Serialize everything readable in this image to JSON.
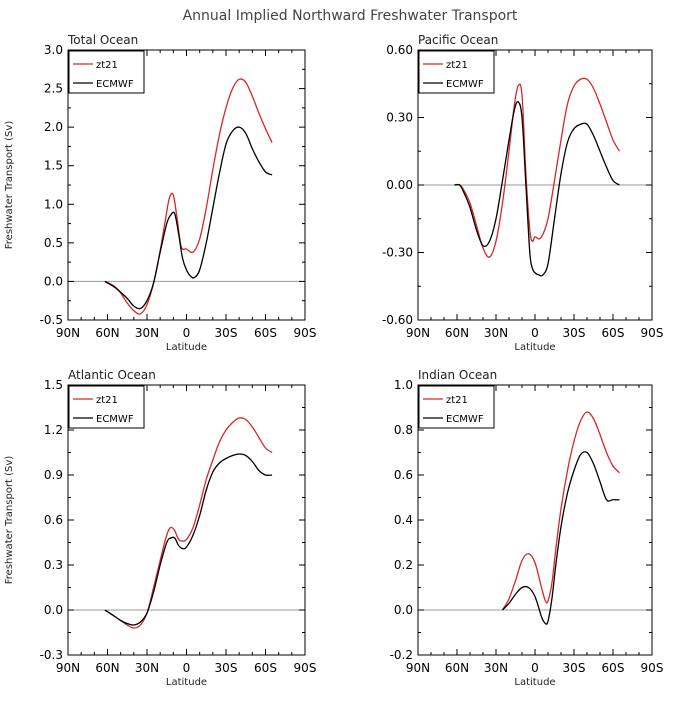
{
  "figure": {
    "title": "Annual Implied Northward Freshwater Transport",
    "title_color": "#444444"
  },
  "chart_data": [
    {
      "type": "line",
      "title": "Total Ocean",
      "xlabel": "Latitude",
      "ylabel": "Freshwater Transport (Sv)",
      "x_ticks": [
        -90,
        -60,
        -30,
        0,
        30,
        60,
        90
      ],
      "x_tick_labels": [
        "90N",
        "60N",
        "30N",
        "0",
        "30S",
        "60S",
        "90S"
      ],
      "xlim": [
        -90,
        90
      ],
      "ylim": [
        -0.5,
        3.0
      ],
      "y_ticks": [
        -0.5,
        0.0,
        0.5,
        1.0,
        1.5,
        2.0,
        2.5,
        3.0
      ],
      "y_tick_labels": [
        "-0.5",
        "0.0",
        "0.5",
        "1.0",
        "1.5",
        "2.0",
        "2.5",
        "3.0"
      ],
      "zero_line": true,
      "legend_position": "top-left",
      "series": [
        {
          "name": "zt21",
          "color": "#d62728",
          "x": [
            -62,
            -55,
            -50,
            -45,
            -40,
            -35,
            -30,
            -25,
            -20,
            -16,
            -13,
            -10,
            -7,
            -4,
            0,
            5,
            10,
            15,
            20,
            25,
            30,
            35,
            40,
            45,
            50,
            55,
            60,
            65
          ],
          "y": [
            0,
            -0.06,
            -0.15,
            -0.28,
            -0.38,
            -0.42,
            -0.3,
            -0.02,
            0.4,
            0.8,
            1.08,
            1.12,
            0.8,
            0.45,
            0.42,
            0.38,
            0.55,
            0.95,
            1.45,
            1.9,
            2.25,
            2.5,
            2.62,
            2.58,
            2.4,
            2.18,
            1.98,
            1.8
          ]
        },
        {
          "name": "ECMWF",
          "color": "#000000",
          "x": [
            -62,
            -55,
            -50,
            -45,
            -40,
            -35,
            -30,
            -25,
            -20,
            -15,
            -12,
            -9,
            -6,
            -3,
            0,
            3,
            6,
            10,
            15,
            20,
            25,
            30,
            35,
            40,
            45,
            50,
            55,
            60,
            65
          ],
          "y": [
            0,
            -0.07,
            -0.14,
            -0.22,
            -0.32,
            -0.35,
            -0.25,
            -0.02,
            0.38,
            0.75,
            0.86,
            0.88,
            0.62,
            0.3,
            0.15,
            0.07,
            0.05,
            0.15,
            0.5,
            0.95,
            1.4,
            1.78,
            1.95,
            2.0,
            1.92,
            1.72,
            1.55,
            1.42,
            1.38
          ]
        }
      ]
    },
    {
      "type": "line",
      "title": "Pacific Ocean",
      "xlabel": "Latitude",
      "ylabel": "",
      "x_ticks": [
        -90,
        -60,
        -30,
        0,
        30,
        60,
        90
      ],
      "x_tick_labels": [
        "90N",
        "60N",
        "30N",
        "0",
        "30S",
        "60S",
        "90S"
      ],
      "xlim": [
        -90,
        90
      ],
      "ylim": [
        -0.6,
        0.6
      ],
      "y_ticks": [
        -0.6,
        -0.3,
        0.0,
        0.3,
        0.6
      ],
      "y_tick_labels": [
        "-0.60",
        "-0.30",
        "0.00",
        "0.30",
        "0.60"
      ],
      "zero_line": true,
      "legend_position": "top-left",
      "series": [
        {
          "name": "zt21",
          "color": "#d62728",
          "x": [
            -62,
            -58,
            -55,
            -50,
            -45,
            -40,
            -35,
            -30,
            -25,
            -20,
            -16,
            -13,
            -10,
            -7,
            -4,
            -2,
            0,
            3,
            6,
            10,
            15,
            20,
            25,
            30,
            35,
            40,
            45,
            50,
            55,
            60,
            65
          ],
          "y": [
            0,
            0,
            -0.02,
            -0.08,
            -0.18,
            -0.28,
            -0.32,
            -0.25,
            -0.08,
            0.15,
            0.35,
            0.44,
            0.4,
            0.05,
            -0.2,
            -0.25,
            -0.23,
            -0.24,
            -0.22,
            -0.15,
            0.02,
            0.2,
            0.36,
            0.44,
            0.47,
            0.47,
            0.43,
            0.36,
            0.28,
            0.2,
            0.15
          ]
        },
        {
          "name": "ECMWF",
          "color": "#000000",
          "x": [
            -62,
            -58,
            -55,
            -50,
            -45,
            -40,
            -35,
            -30,
            -25,
            -20,
            -16,
            -13,
            -10,
            -7,
            -4,
            -2,
            0,
            3,
            6,
            10,
            15,
            20,
            25,
            30,
            35,
            40,
            45,
            50,
            55,
            60,
            65
          ],
          "y": [
            0,
            0,
            -0.03,
            -0.1,
            -0.2,
            -0.27,
            -0.25,
            -0.15,
            0.02,
            0.2,
            0.33,
            0.37,
            0.3,
            0.0,
            -0.3,
            -0.37,
            -0.39,
            -0.4,
            -0.4,
            -0.35,
            -0.15,
            0.05,
            0.19,
            0.25,
            0.27,
            0.27,
            0.22,
            0.15,
            0.08,
            0.02,
            0.0
          ]
        }
      ]
    },
    {
      "type": "line",
      "title": "Atlantic Ocean",
      "xlabel": "Latitude",
      "ylabel": "Freshwater Transport (Sv)",
      "x_ticks": [
        -90,
        -60,
        -30,
        0,
        30,
        60,
        90
      ],
      "x_tick_labels": [
        "90N",
        "60N",
        "30N",
        "0",
        "30S",
        "60S",
        "90S"
      ],
      "xlim": [
        -90,
        90
      ],
      "ylim": [
        -0.3,
        1.5
      ],
      "y_ticks": [
        -0.3,
        0.0,
        0.3,
        0.6,
        0.9,
        1.2,
        1.5
      ],
      "y_tick_labels": [
        "-0.3",
        "0.0",
        "0.3",
        "0.6",
        "0.9",
        "1.2",
        "1.5"
      ],
      "zero_line": true,
      "legend_position": "top-left",
      "series": [
        {
          "name": "zt21",
          "color": "#d62728",
          "x": [
            -62,
            -55,
            -50,
            -45,
            -40,
            -35,
            -30,
            -25,
            -20,
            -15,
            -12,
            -9,
            -6,
            -3,
            0,
            5,
            10,
            15,
            20,
            25,
            30,
            35,
            40,
            45,
            50,
            55,
            60,
            65
          ],
          "y": [
            0,
            -0.04,
            -0.07,
            -0.1,
            -0.12,
            -0.1,
            -0.02,
            0.15,
            0.33,
            0.5,
            0.55,
            0.53,
            0.47,
            0.46,
            0.47,
            0.55,
            0.7,
            0.87,
            1.0,
            1.12,
            1.2,
            1.25,
            1.28,
            1.27,
            1.22,
            1.15,
            1.08,
            1.05
          ]
        },
        {
          "name": "ECMWF",
          "color": "#000000",
          "x": [
            -62,
            -55,
            -50,
            -45,
            -40,
            -35,
            -30,
            -25,
            -20,
            -15,
            -12,
            -9,
            -6,
            -3,
            0,
            5,
            10,
            15,
            20,
            25,
            30,
            35,
            40,
            45,
            50,
            55,
            60,
            65
          ],
          "y": [
            0,
            -0.04,
            -0.07,
            -0.09,
            -0.1,
            -0.08,
            -0.02,
            0.12,
            0.3,
            0.45,
            0.48,
            0.48,
            0.43,
            0.41,
            0.42,
            0.5,
            0.63,
            0.8,
            0.92,
            0.98,
            1.01,
            1.03,
            1.04,
            1.03,
            0.99,
            0.93,
            0.9,
            0.9
          ]
        }
      ]
    },
    {
      "type": "line",
      "title": "Indian Ocean",
      "xlabel": "Latitude",
      "ylabel": "",
      "x_ticks": [
        -90,
        -60,
        -30,
        0,
        30,
        60,
        90
      ],
      "x_tick_labels": [
        "90N",
        "60N",
        "30N",
        "0",
        "30S",
        "60S",
        "90S"
      ],
      "xlim": [
        -90,
        90
      ],
      "ylim": [
        -0.2,
        1.0
      ],
      "y_ticks": [
        -0.2,
        0.0,
        0.2,
        0.4,
        0.6,
        0.8,
        1.0
      ],
      "y_tick_labels": [
        "-0.2",
        "0.0",
        "0.2",
        "0.4",
        "0.6",
        "0.8",
        "1.0"
      ],
      "zero_line": true,
      "legend_position": "top-left",
      "series": [
        {
          "name": "zt21",
          "color": "#d62728",
          "x": [
            -25,
            -20,
            -15,
            -10,
            -5,
            0,
            5,
            8,
            10,
            13,
            16,
            20,
            25,
            30,
            35,
            40,
            45,
            50,
            55,
            60,
            65
          ],
          "y": [
            0,
            0.05,
            0.13,
            0.22,
            0.25,
            0.21,
            0.1,
            0.04,
            0.04,
            0.12,
            0.27,
            0.45,
            0.62,
            0.75,
            0.84,
            0.88,
            0.85,
            0.78,
            0.7,
            0.64,
            0.61
          ]
        },
        {
          "name": "ECMWF",
          "color": "#000000",
          "x": [
            -25,
            -20,
            -15,
            -10,
            -5,
            0,
            5,
            8,
            10,
            13,
            16,
            20,
            25,
            30,
            35,
            40,
            45,
            50,
            55,
            60,
            65
          ],
          "y": [
            0,
            0.03,
            0.07,
            0.1,
            0.1,
            0.06,
            -0.03,
            -0.06,
            -0.05,
            0.05,
            0.2,
            0.37,
            0.52,
            0.62,
            0.69,
            0.7,
            0.65,
            0.57,
            0.49,
            0.49,
            0.49
          ]
        }
      ]
    }
  ]
}
